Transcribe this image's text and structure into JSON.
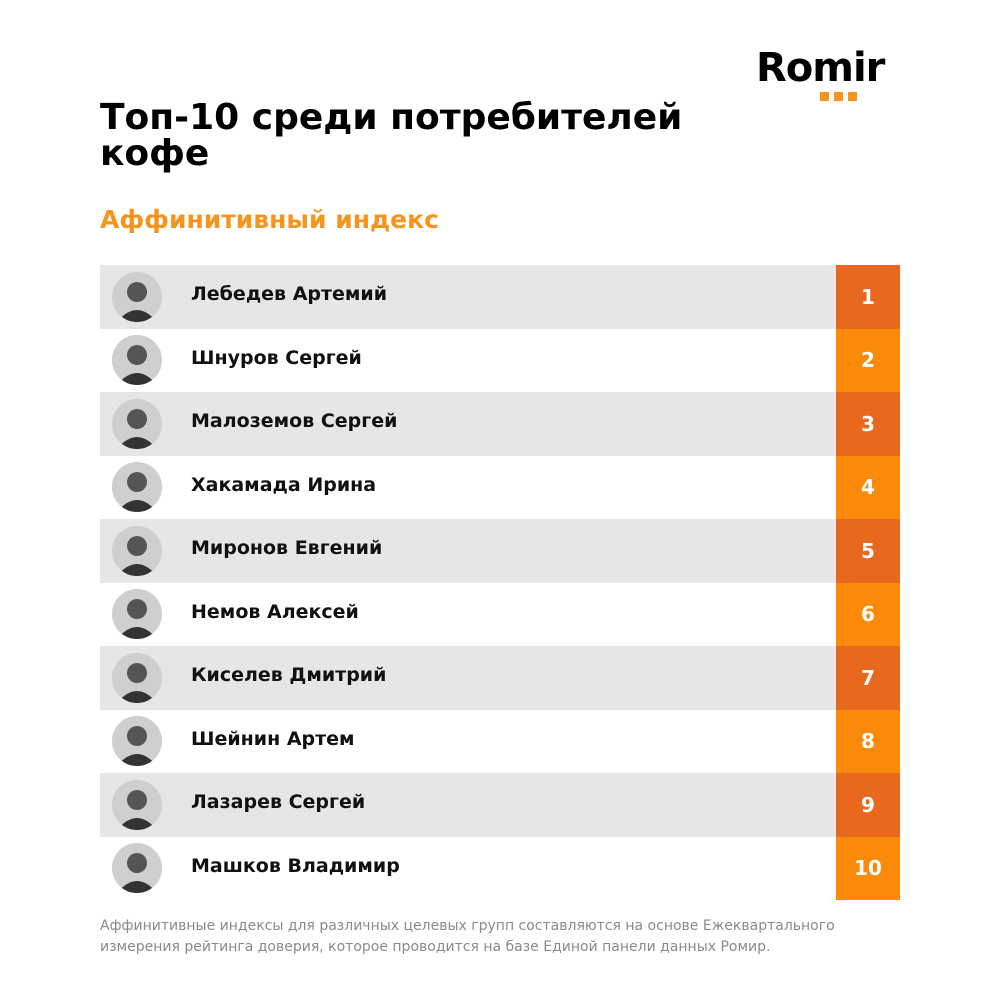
{
  "brand": {
    "logo_text": "Romir",
    "accent_color": "#f7941d"
  },
  "title": "Топ-10 среди потребителей кофе",
  "subtitle": "Аффинитивный индекс",
  "ranking": [
    {
      "name": "Лебедев Артемий",
      "rank": "1",
      "avatar": "person-photo-icon"
    },
    {
      "name": "Шнуров Сергей",
      "rank": "2",
      "avatar": "person-photo-icon"
    },
    {
      "name": "Малоземов Сергей",
      "rank": "3",
      "avatar": "person-photo-icon"
    },
    {
      "name": "Хакамада Ирина",
      "rank": "4",
      "avatar": "person-photo-icon"
    },
    {
      "name": "Миронов Евгений",
      "rank": "5",
      "avatar": "person-photo-icon"
    },
    {
      "name": "Немов Алексей",
      "rank": "6",
      "avatar": "person-photo-icon"
    },
    {
      "name": "Киселев Дмитрий",
      "rank": "7",
      "avatar": "person-photo-icon"
    },
    {
      "name": "Шейнин Артем",
      "rank": "8",
      "avatar": "person-photo-icon"
    },
    {
      "name": "Лазарев Сергей",
      "rank": "9",
      "avatar": "person-photo-icon"
    },
    {
      "name": "Машков Владимир",
      "rank": "10",
      "avatar": "person-photo-icon"
    }
  ],
  "footnote": "Аффинитивные индексы для различных целевых групп составляются на основе Ежеквартального измерения рейтинга доверия, которое проводится на базе Единой панели данных Ромир.",
  "colors": {
    "rank_odd": "#e8681e",
    "rank_even": "#fb8a0a",
    "row_odd": "#e6e6e6"
  }
}
